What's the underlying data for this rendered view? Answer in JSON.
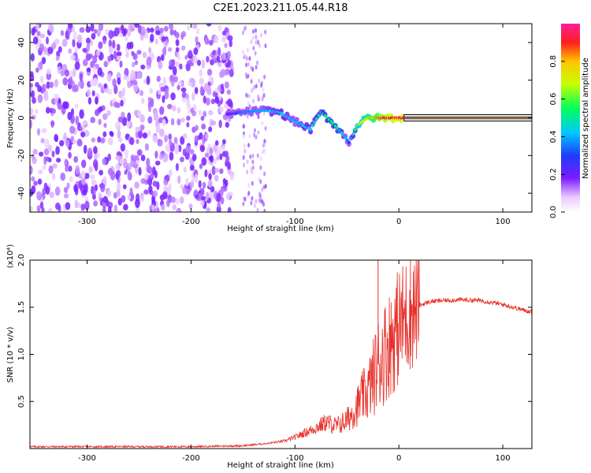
{
  "title": "C2E1.2023.211.05.44.R18",
  "colors": {
    "snr_line": "#e8302a",
    "axis": "#000000",
    "background": "#ffffff"
  },
  "chart_data": [
    {
      "type": "heatmap",
      "xlabel": "Height of straight line (km)",
      "ylabel": "Frequency (Hz)",
      "xlim": [
        -355,
        128
      ],
      "ylim": [
        -50,
        50
      ],
      "x_ticks": [
        -300,
        -200,
        -100,
        0,
        100
      ],
      "y_ticks": [
        -40,
        -20,
        0,
        20,
        40
      ],
      "colorbar": {
        "label": "Normalized spectral amplitude",
        "range": [
          0,
          1
        ],
        "ticks": [
          0.0,
          0.2,
          0.4,
          0.6,
          0.8
        ],
        "colormap": "rainbow (white-purple-blue-cyan-green-yellow-red-pink)"
      },
      "features": {
        "broadband_noise_x_range": [
          -355,
          -160
        ],
        "noise_band_x_range": [
          -150,
          -128
        ],
        "echo_track": [
          {
            "x": -165,
            "y": 2,
            "amp": 0.2
          },
          {
            "x": -150,
            "y": 3,
            "amp": 0.35
          },
          {
            "x": -130,
            "y": 4,
            "amp": 0.4
          },
          {
            "x": -115,
            "y": 3,
            "amp": 0.45
          },
          {
            "x": -100,
            "y": -2,
            "amp": 0.4
          },
          {
            "x": -85,
            "y": -6,
            "amp": 0.45
          },
          {
            "x": -75,
            "y": 3,
            "amp": 0.5
          },
          {
            "x": -65,
            "y": -2,
            "amp": 0.55
          },
          {
            "x": -55,
            "y": -8,
            "amp": 0.5
          },
          {
            "x": -48,
            "y": -13,
            "amp": 0.3
          },
          {
            "x": -40,
            "y": -4,
            "amp": 0.65
          },
          {
            "x": -30,
            "y": 0,
            "amp": 0.75
          },
          {
            "x": -15,
            "y": 0,
            "amp": 0.9
          },
          {
            "x": 0,
            "y": 0,
            "amp": 0.95
          },
          {
            "x": 128,
            "y": 0,
            "amp": 0.95
          }
        ]
      }
    },
    {
      "type": "line",
      "xlabel": "Height of straight line (km)",
      "ylabel": "SNR (10 * v/v)",
      "y_multiplier": "(x10⁴)",
      "xlim": [
        -355,
        128
      ],
      "ylim": [
        0,
        2.0
      ],
      "x_ticks": [
        -300,
        -200,
        -100,
        0,
        100
      ],
      "y_ticks": [
        0.5,
        1.0,
        1.5,
        2.0
      ],
      "y_tick_labels": [
        "0.5",
        "1.0",
        "1.5",
        "2.0"
      ],
      "series": [
        {
          "x": [
            -355,
            -300,
            -250,
            -200,
            -150,
            -130,
            -110,
            -100,
            -90,
            -80,
            -70,
            -60,
            -50,
            -40,
            -35,
            -30,
            -25,
            -20,
            -15,
            -10,
            -5,
            0,
            10,
            20,
            30,
            40,
            60,
            80,
            100,
            110,
            120,
            128
          ],
          "values": [
            0.02,
            0.02,
            0.02,
            0.02,
            0.03,
            0.05,
            0.08,
            0.12,
            0.17,
            0.22,
            0.28,
            0.24,
            0.3,
            0.45,
            0.55,
            0.6,
            0.75,
            0.9,
            1.0,
            1.1,
            1.2,
            1.3,
            1.45,
            1.52,
            1.56,
            1.57,
            1.58,
            1.57,
            1.53,
            1.5,
            1.47,
            1.45
          ]
        }
      ],
      "annotations": [
        {
          "x": -20,
          "value": 2.0,
          "text": ""
        }
      ]
    }
  ]
}
